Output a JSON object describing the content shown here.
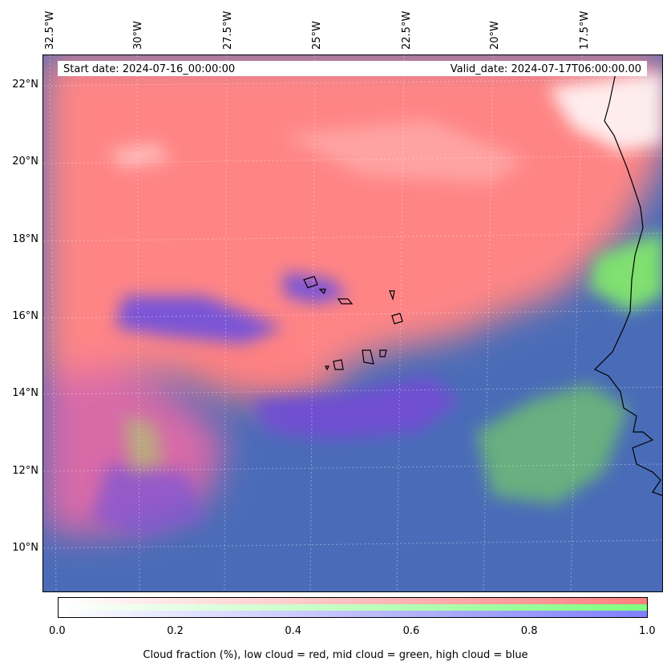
{
  "map": {
    "lon_labels": [
      "32.5°W",
      "30°W",
      "27.5°W",
      "25°W",
      "22.5°W",
      "20°W",
      "17.5°W"
    ],
    "lat_labels": [
      "22°N",
      "20°N",
      "18°N",
      "16°N",
      "14°N",
      "12°N",
      "10°N"
    ],
    "start_date": "Start date: 2024-07-16_00:00:00",
    "valid_date": "Valid_date: 2024-07-17T06:00:00.00"
  },
  "colorbar": {
    "ticks": [
      "0.0",
      "0.2",
      "0.4",
      "0.6",
      "0.8",
      "1.0"
    ],
    "caption": "Cloud fraction (%), low cloud = red, mid cloud = green, high cloud = blue",
    "colors": {
      "low": "#ff7f7f",
      "mid": "#7fff7f",
      "high": "#7f7fff"
    }
  },
  "colors": {
    "low_cloud": "#ff8080",
    "mid_cloud": "#80e070",
    "high_cloud": "#6a4fd0",
    "background": "#4a6cb8"
  }
}
